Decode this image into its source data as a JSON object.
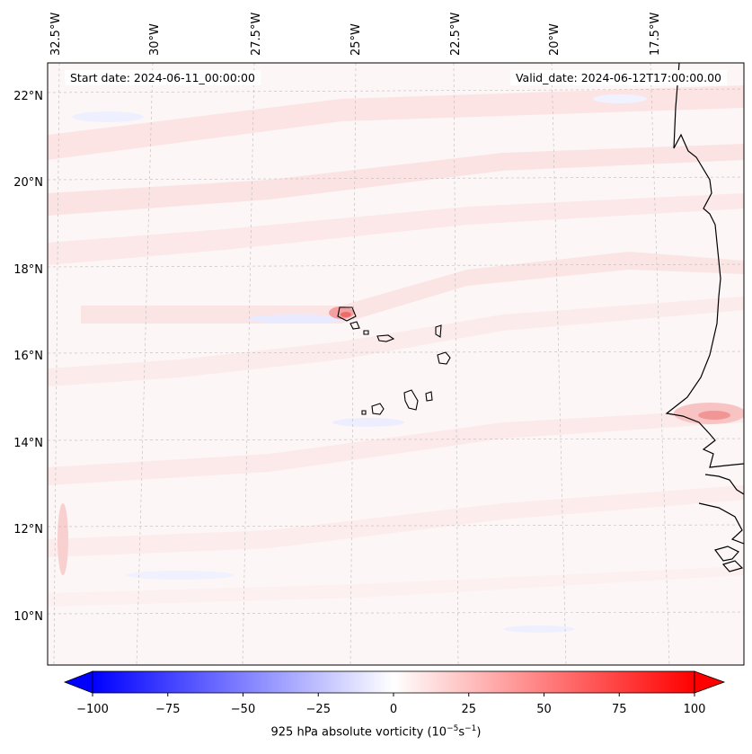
{
  "header": {
    "start_date": "Start date: 2024-06-11_00:00:00",
    "valid_date": "Valid_date: 2024-06-12T17:00:00.00"
  },
  "map": {
    "longitude_labels": [
      "32.5°W",
      "30°W",
      "27.5°W",
      "25°W",
      "22.5°W",
      "20°W",
      "17.5°W"
    ],
    "latitude_labels": [
      "22°N",
      "20°N",
      "18°N",
      "16°N",
      "14°N",
      "12°N",
      "10°N"
    ],
    "field_colormap": "bwr",
    "gridlines": "dashed-gray"
  },
  "colorbar": {
    "title": "925 hPa absolute vorticity (10",
    "title_exp1": "−5",
    "title_mid": "s",
    "title_exp2": "−1",
    "title_end": ")",
    "ticks": [
      "−100",
      "−75",
      "−50",
      "−25",
      "0",
      "25",
      "50",
      "75",
      "100"
    ],
    "min": -100,
    "max": 100,
    "extend": "both",
    "low_color": "#0000ff",
    "mid_color": "#ffffff",
    "high_color": "#ff0000"
  }
}
